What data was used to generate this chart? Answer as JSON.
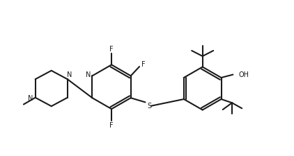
{
  "bg_color": "#ffffff",
  "line_color": "#1a1a1a",
  "line_width": 1.5,
  "fig_width": 4.22,
  "fig_height": 2.26,
  "dpi": 100,
  "xlim": [
    0.0,
    9.5
  ],
  "ylim": [
    0.8,
    5.8
  ]
}
